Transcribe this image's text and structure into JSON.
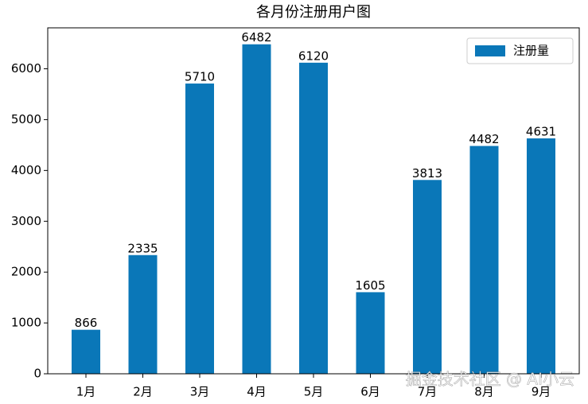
{
  "chart_data": {
    "type": "bar",
    "title": "各月份注册用户图",
    "categories": [
      "1月",
      "2月",
      "3月",
      "4月",
      "5月",
      "6月",
      "7月",
      "8月",
      "9月"
    ],
    "series": [
      {
        "name": "注册量",
        "color": "#0a77b8",
        "values": [
          866,
          2335,
          5710,
          6482,
          6120,
          1605,
          3813,
          4482,
          4631
        ]
      }
    ],
    "ylim": [
      0,
      6806
    ],
    "yticks": [
      0,
      1000,
      2000,
      3000,
      4000,
      5000,
      6000
    ],
    "legend": "upper right",
    "data_labels": true,
    "watermark": "掘金技术社区 @ AI小云"
  }
}
